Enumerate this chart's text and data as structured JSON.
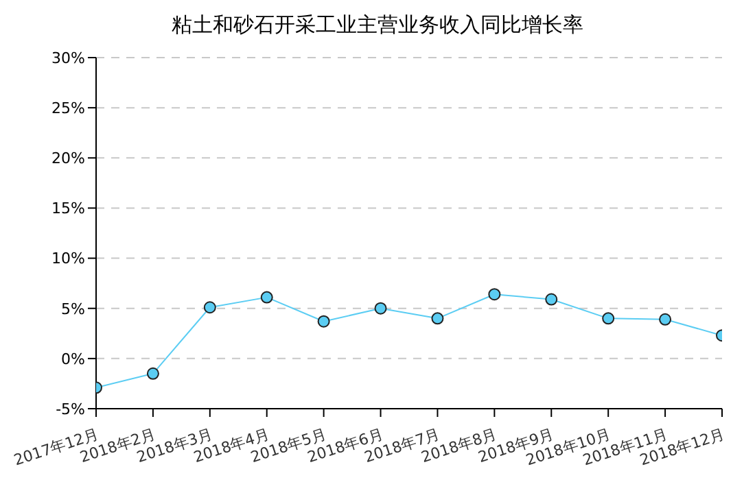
{
  "chart_data": {
    "type": "line",
    "title": "粘土和砂石开采工业主营业务收入同比增长率",
    "categories": [
      "2017年12月",
      "2018年2月",
      "2018年3月",
      "2018年4月",
      "2018年5月",
      "2018年6月",
      "2018年7月",
      "2018年8月",
      "2018年9月",
      "2018年10月",
      "2018年11月",
      "2018年12月"
    ],
    "series": [
      {
        "color": "#5bcdf3",
        "values": [
          -2.9,
          -1.5,
          5.1,
          6.1,
          3.7,
          5.0,
          4.0,
          6.4,
          5.9,
          4.0,
          3.9,
          2.3
        ]
      }
    ],
    "ylim": [
      -5,
      30
    ],
    "yticks": [
      {
        "value": -5,
        "label": "-5%"
      },
      {
        "value": 0,
        "label": "0%"
      },
      {
        "value": 5,
        "label": "5%"
      },
      {
        "value": 10,
        "label": "10%"
      },
      {
        "value": 15,
        "label": "15%"
      },
      {
        "value": 20,
        "label": "20%"
      },
      {
        "value": 25,
        "label": "25%"
      },
      {
        "value": 30,
        "label": "30%"
      }
    ],
    "grid": "y",
    "marker": "circle",
    "line_style": "solid",
    "legend": false
  }
}
